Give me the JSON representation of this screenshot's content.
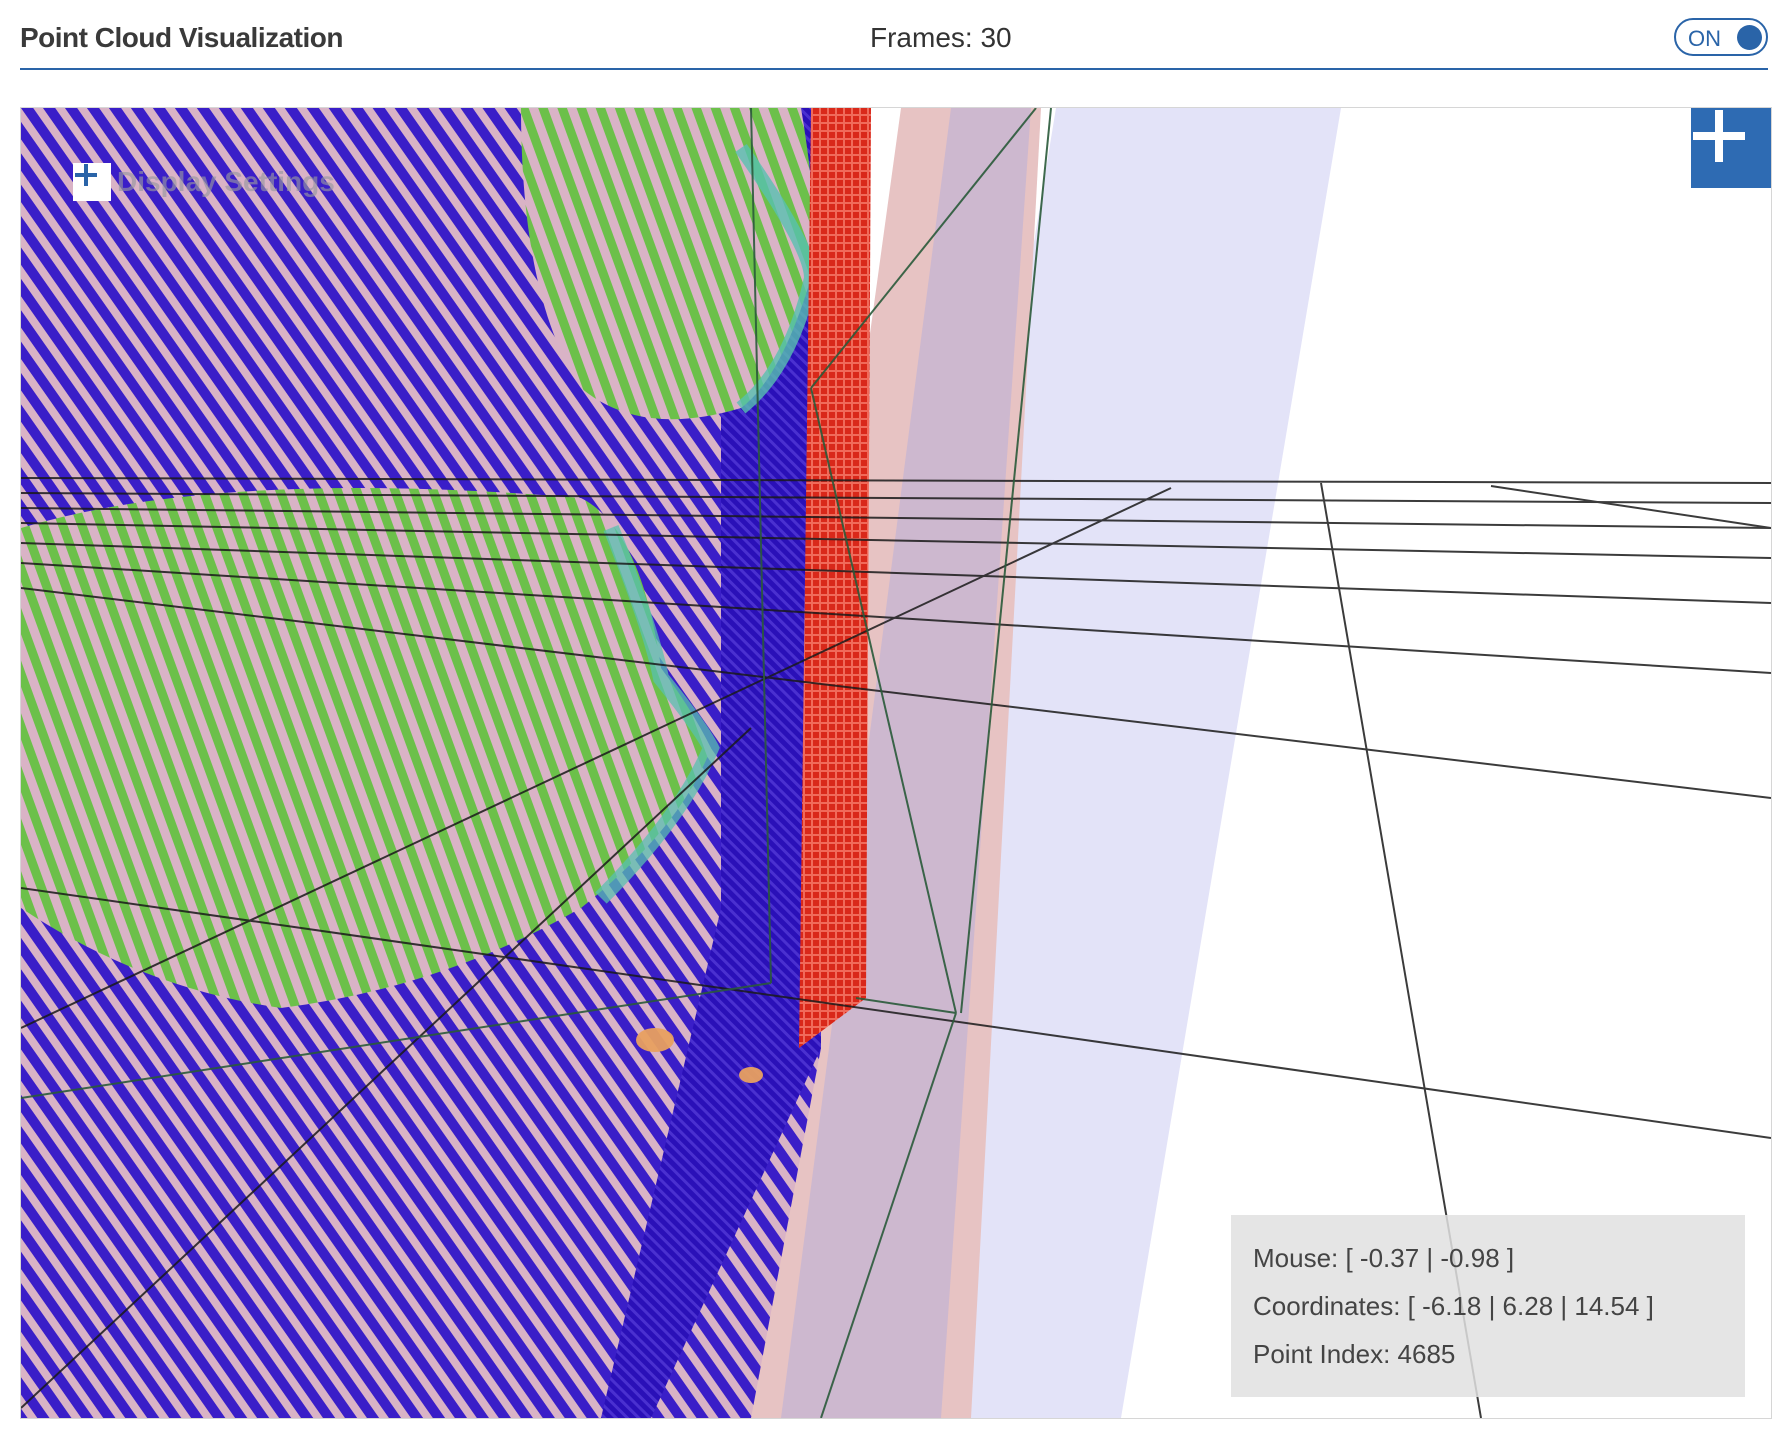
{
  "header": {
    "title": "Point Cloud Visualization",
    "frames_text": "Frames: 30",
    "toggle_label": "ON",
    "toggle_on": true
  },
  "viewport": {
    "display_settings_label": "Display Settings",
    "expand_icon": "plus-icon",
    "settings_icon": "plus-icon"
  },
  "info": {
    "mouse": "Mouse: [ -0.37 | -0.98 ]",
    "coordinates": "Coordinates: [ -6.18 | 6.28 | 14.54 ]",
    "point_index": "Point Index: 4685"
  },
  "colors": {
    "accent": "#2a64a8",
    "expand_button": "#2e6bb3",
    "points_blue": "#3a1ec8",
    "points_green": "#6cc04a",
    "points_red": "#e03a2a",
    "background_pink": "#d9b3c6",
    "plane_lavender": "#e3e3f8"
  }
}
